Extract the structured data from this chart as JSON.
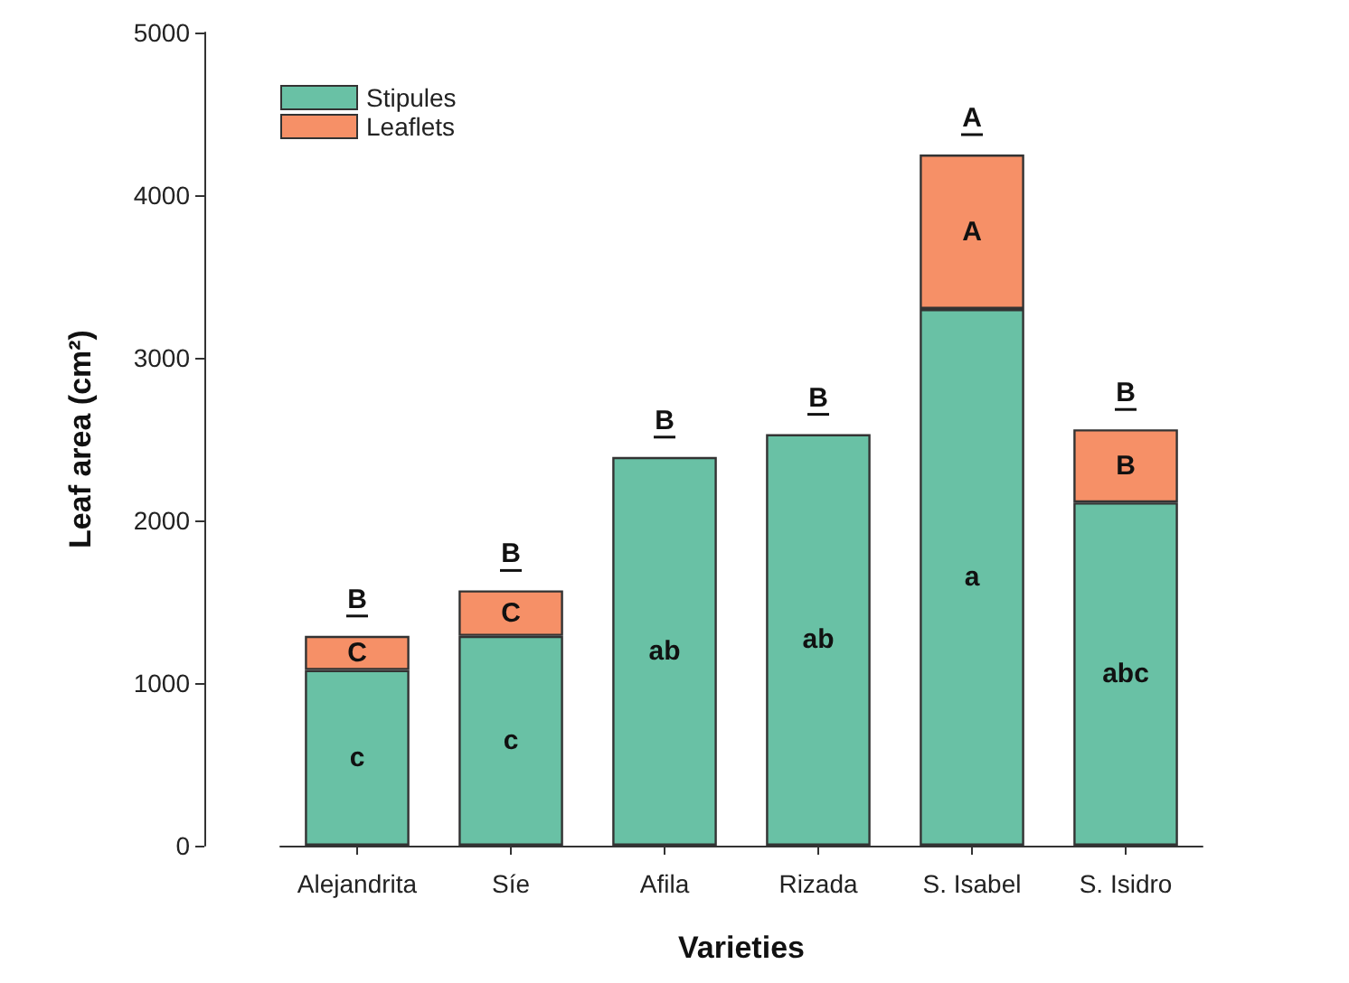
{
  "chart_data": {
    "type": "bar",
    "stacked": true,
    "xlabel": "Varieties",
    "ylabel": "Leaf area (cm²)",
    "categories": [
      "Alejandrita",
      "Síe",
      "Afila",
      "Rizada",
      "S. Isabel",
      "S. Isidro"
    ],
    "series": [
      {
        "name": "Stipules",
        "color": "#69c1a5",
        "values": [
          1080,
          1290,
          2390,
          2530,
          3300,
          2110
        ],
        "value_labels": [
          "c",
          "c",
          "ab",
          "ab",
          "a",
          "abc"
        ]
      },
      {
        "name": "Leaflets",
        "color": "#f69067",
        "values": [
          210,
          280,
          null,
          null,
          950,
          450
        ],
        "value_labels": [
          "C",
          "C",
          null,
          null,
          "A",
          "B"
        ]
      }
    ],
    "ylim": [
      0,
      5000
    ],
    "yticks": [
      0,
      1000,
      2000,
      3000,
      4000,
      5000
    ],
    "grid": false,
    "legend": "top left",
    "annotations": [
      {
        "text": "B",
        "x": "Alejandrita",
        "y": 1290
      },
      {
        "text": "B",
        "x": "Síe",
        "y": 1570
      },
      {
        "text": "B",
        "x": "Afila",
        "y": 2390
      },
      {
        "text": "B",
        "x": "Rizada",
        "y": 2530
      },
      {
        "text": "A",
        "x": "S. Isabel",
        "y": 4250
      },
      {
        "text": "B",
        "x": "S. Isidro",
        "y": 2560
      }
    ]
  }
}
